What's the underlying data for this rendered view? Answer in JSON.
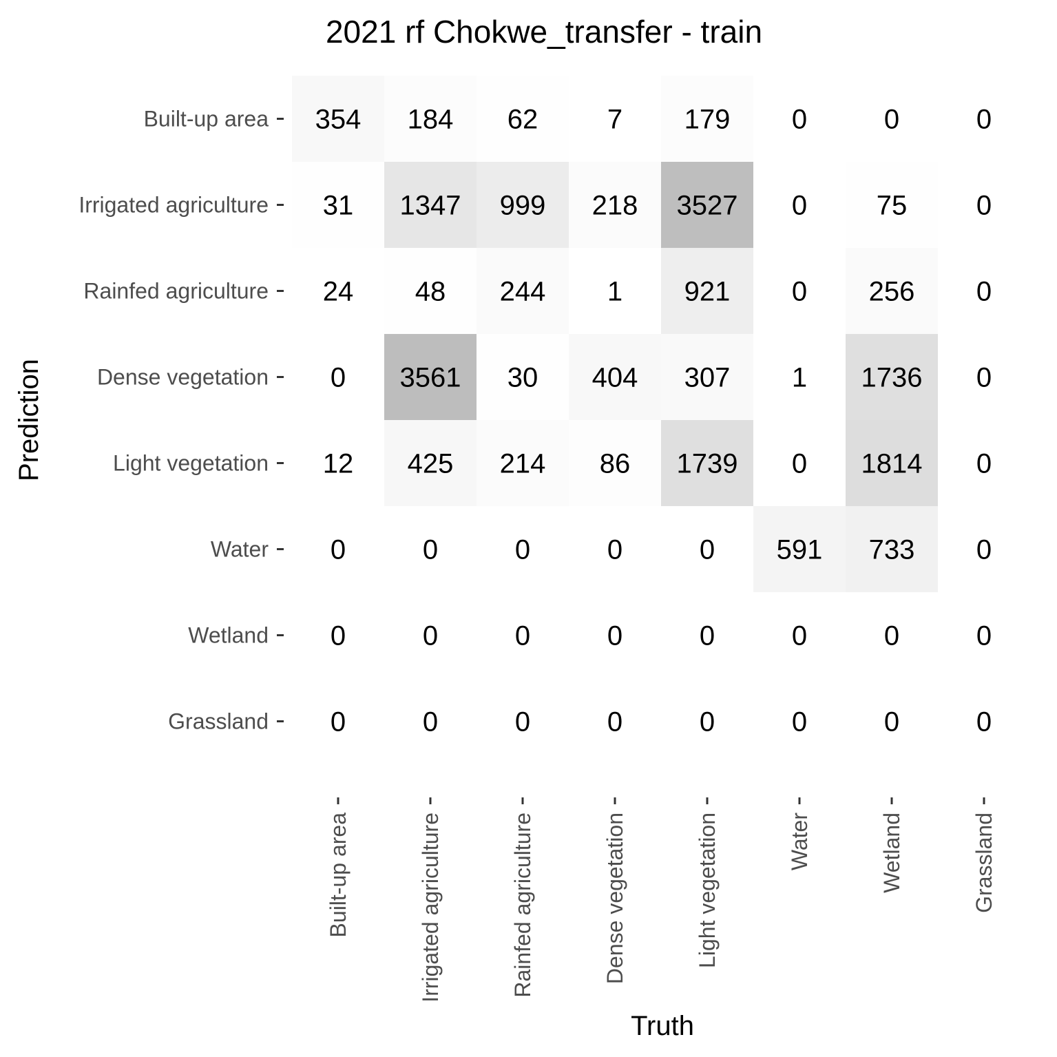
{
  "chart_data": {
    "type": "heatmap",
    "title": "2021 rf Chokwe_transfer - train",
    "xlabel": "Truth",
    "ylabel": "Prediction",
    "x_categories": [
      "Built-up area",
      "Irrigated agriculture",
      "Rainfed agriculture",
      "Dense vegetation",
      "Light vegetation",
      "Water",
      "Wetland",
      "Grassland"
    ],
    "y_categories": [
      "Built-up area",
      "Irrigated agriculture",
      "Rainfed agriculture",
      "Dense vegetation",
      "Light vegetation",
      "Water",
      "Wetland",
      "Grassland"
    ],
    "values": [
      [
        354,
        184,
        62,
        7,
        179,
        0,
        0,
        0
      ],
      [
        31,
        1347,
        999,
        218,
        3527,
        0,
        75,
        0
      ],
      [
        24,
        48,
        244,
        1,
        921,
        0,
        256,
        0
      ],
      [
        0,
        3561,
        30,
        404,
        307,
        1,
        1736,
        0
      ],
      [
        12,
        425,
        214,
        86,
        1739,
        0,
        1814,
        0
      ],
      [
        0,
        0,
        0,
        0,
        0,
        591,
        733,
        0
      ],
      [
        0,
        0,
        0,
        0,
        0,
        0,
        0,
        0
      ],
      [
        0,
        0,
        0,
        0,
        0,
        0,
        0,
        0
      ]
    ],
    "color_scale": {
      "low": "#ffffff",
      "high": "#bdbdbd",
      "zero": "none"
    },
    "grid": false
  }
}
